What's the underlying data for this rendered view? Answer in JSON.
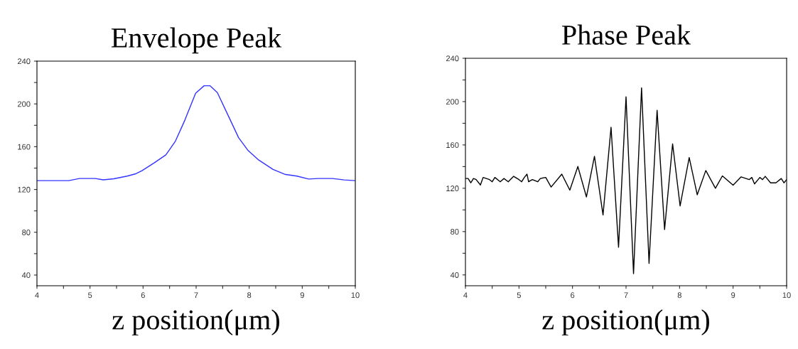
{
  "chart_data": [
    {
      "type": "line",
      "title": "Envelope Peak",
      "xlabel": "z position(μm)",
      "x": [
        4.0,
        4.6,
        4.8,
        5.1,
        5.25,
        5.45,
        5.7,
        5.85,
        5.98,
        6.21,
        6.43,
        6.61,
        6.79,
        6.99,
        7.15,
        7.26,
        7.4,
        7.6,
        7.8,
        7.98,
        8.18,
        8.45,
        8.67,
        8.9,
        9.12,
        9.3,
        9.57,
        9.79,
        10.0
      ],
      "series": [
        {
          "color": "#3333ff",
          "values": [
            128.3,
            128.3,
            130.3,
            130.3,
            129,
            130,
            132.5,
            134.5,
            137.6,
            144.9,
            152.4,
            165.2,
            185.1,
            209.9,
            217,
            217,
            210.6,
            189.6,
            168.5,
            156.4,
            147.5,
            138.7,
            134.2,
            132.5,
            129.8,
            130.3,
            130.3,
            128.9,
            128.3
          ]
        }
      ],
      "xlim": [
        4,
        10
      ],
      "ylim": [
        30,
        240
      ],
      "xticks": [
        4,
        {
          "value": 4.5,
          "label": null
        },
        5,
        {
          "value": 5.5,
          "label": null
        },
        6,
        {
          "value": 6.5,
          "label": null
        },
        7,
        {
          "value": 7.5,
          "label": null
        },
        8,
        {
          "value": 8.5,
          "label": null
        },
        9,
        {
          "value": 9.5,
          "label": null
        },
        10
      ],
      "yticks": [
        40,
        {
          "value": 60,
          "label": null
        },
        80,
        {
          "value": 100,
          "label": null
        },
        120,
        {
          "value": 140,
          "label": null
        },
        160,
        {
          "value": 180,
          "label": null
        },
        200,
        {
          "value": 220,
          "label": null
        },
        240
      ],
      "grid": false
    },
    {
      "type": "line",
      "title": "Phase Peak",
      "xlabel": "z position(μm)",
      "x": [
        4.0,
        4.05,
        4.1,
        4.15,
        4.2,
        4.28,
        4.33,
        4.45,
        4.5,
        4.55,
        4.65,
        4.72,
        4.8,
        4.9,
        5.0,
        5.05,
        5.1,
        5.15,
        5.18,
        5.25,
        5.35,
        5.4,
        5.5,
        5.6,
        5.8,
        5.95,
        6.1,
        6.26,
        6.41,
        6.57,
        6.72,
        6.86,
        7.0,
        7.14,
        7.29,
        7.43,
        7.58,
        7.72,
        7.87,
        8.01,
        8.18,
        8.33,
        8.49,
        8.67,
        8.8,
        9.0,
        9.15,
        9.3,
        9.35,
        9.4,
        9.5,
        9.55,
        9.6,
        9.7,
        9.8,
        9.9,
        9.95,
        10.0
      ],
      "series": [
        {
          "color": "#000000",
          "values": [
            129,
            129,
            125,
            129,
            128,
            123,
            130,
            128,
            126,
            130,
            126,
            129,
            126,
            131,
            128,
            126,
            130,
            133,
            126,
            128,
            126,
            129,
            130,
            121.1,
            133,
            118.3,
            140.1,
            112,
            149.5,
            95.4,
            176.3,
            65.5,
            204.5,
            41.1,
            212.7,
            50.7,
            192,
            81.9,
            161,
            103.7,
            148.4,
            114,
            136.4,
            120,
            131.4,
            122.9,
            130.5,
            128,
            130,
            124,
            130,
            128,
            131,
            125,
            125,
            129,
            125,
            128
          ]
        }
      ],
      "xlim": [
        4,
        10
      ],
      "ylim": [
        30,
        240
      ],
      "xticks": [
        4,
        {
          "value": 4.5,
          "label": null
        },
        5,
        {
          "value": 5.5,
          "label": null
        },
        6,
        {
          "value": 6.5,
          "label": null
        },
        7,
        {
          "value": 7.5,
          "label": null
        },
        8,
        {
          "value": 8.5,
          "label": null
        },
        9,
        {
          "value": 9.5,
          "label": null
        },
        10
      ],
      "yticks": [
        40,
        {
          "value": 60,
          "label": null
        },
        80,
        {
          "value": 100,
          "label": null
        },
        120,
        {
          "value": 140,
          "label": null
        },
        160,
        {
          "value": 180,
          "label": null
        },
        200,
        {
          "value": 220,
          "label": null
        },
        240
      ],
      "grid": false
    }
  ]
}
